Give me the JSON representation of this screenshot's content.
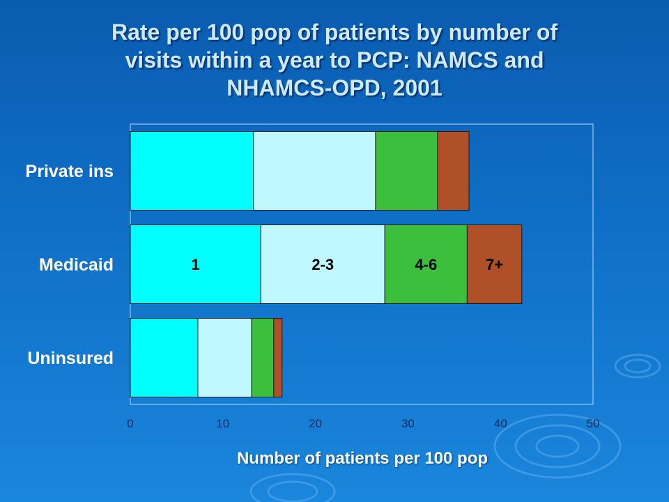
{
  "chart_data": {
    "type": "bar",
    "orientation": "horizontal",
    "stacked": true,
    "title_lines": [
      "Rate per 100 pop of patients by number of",
      "visits within a year to PCP: NAMCS and",
      "NHAMCS-OPD, 2001"
    ],
    "xlabel": "Number of patients per 100 pop",
    "ylabel": "",
    "xlim": [
      0,
      50
    ],
    "x_ticks": [
      "0",
      "10",
      "20",
      "30",
      "40",
      "50"
    ],
    "categories": [
      "Private ins",
      "Medicaid",
      "Uninsured"
    ],
    "series": [
      {
        "name": "1",
        "color": "#00ffff",
        "values": [
          13.3,
          14.1,
          7.3
        ]
      },
      {
        "name": "2-3",
        "color": "#c0f8ff",
        "values": [
          13.2,
          13.4,
          5.8
        ]
      },
      {
        "name": "4-6",
        "color": "#3cbf3c",
        "values": [
          6.7,
          8.9,
          2.4
        ]
      },
      {
        "name": "7+",
        "color": "#b05028",
        "values": [
          3.4,
          5.9,
          0.9
        ]
      }
    ],
    "series_labels_on_category": "Medicaid",
    "grid": false,
    "legend": "inline"
  }
}
